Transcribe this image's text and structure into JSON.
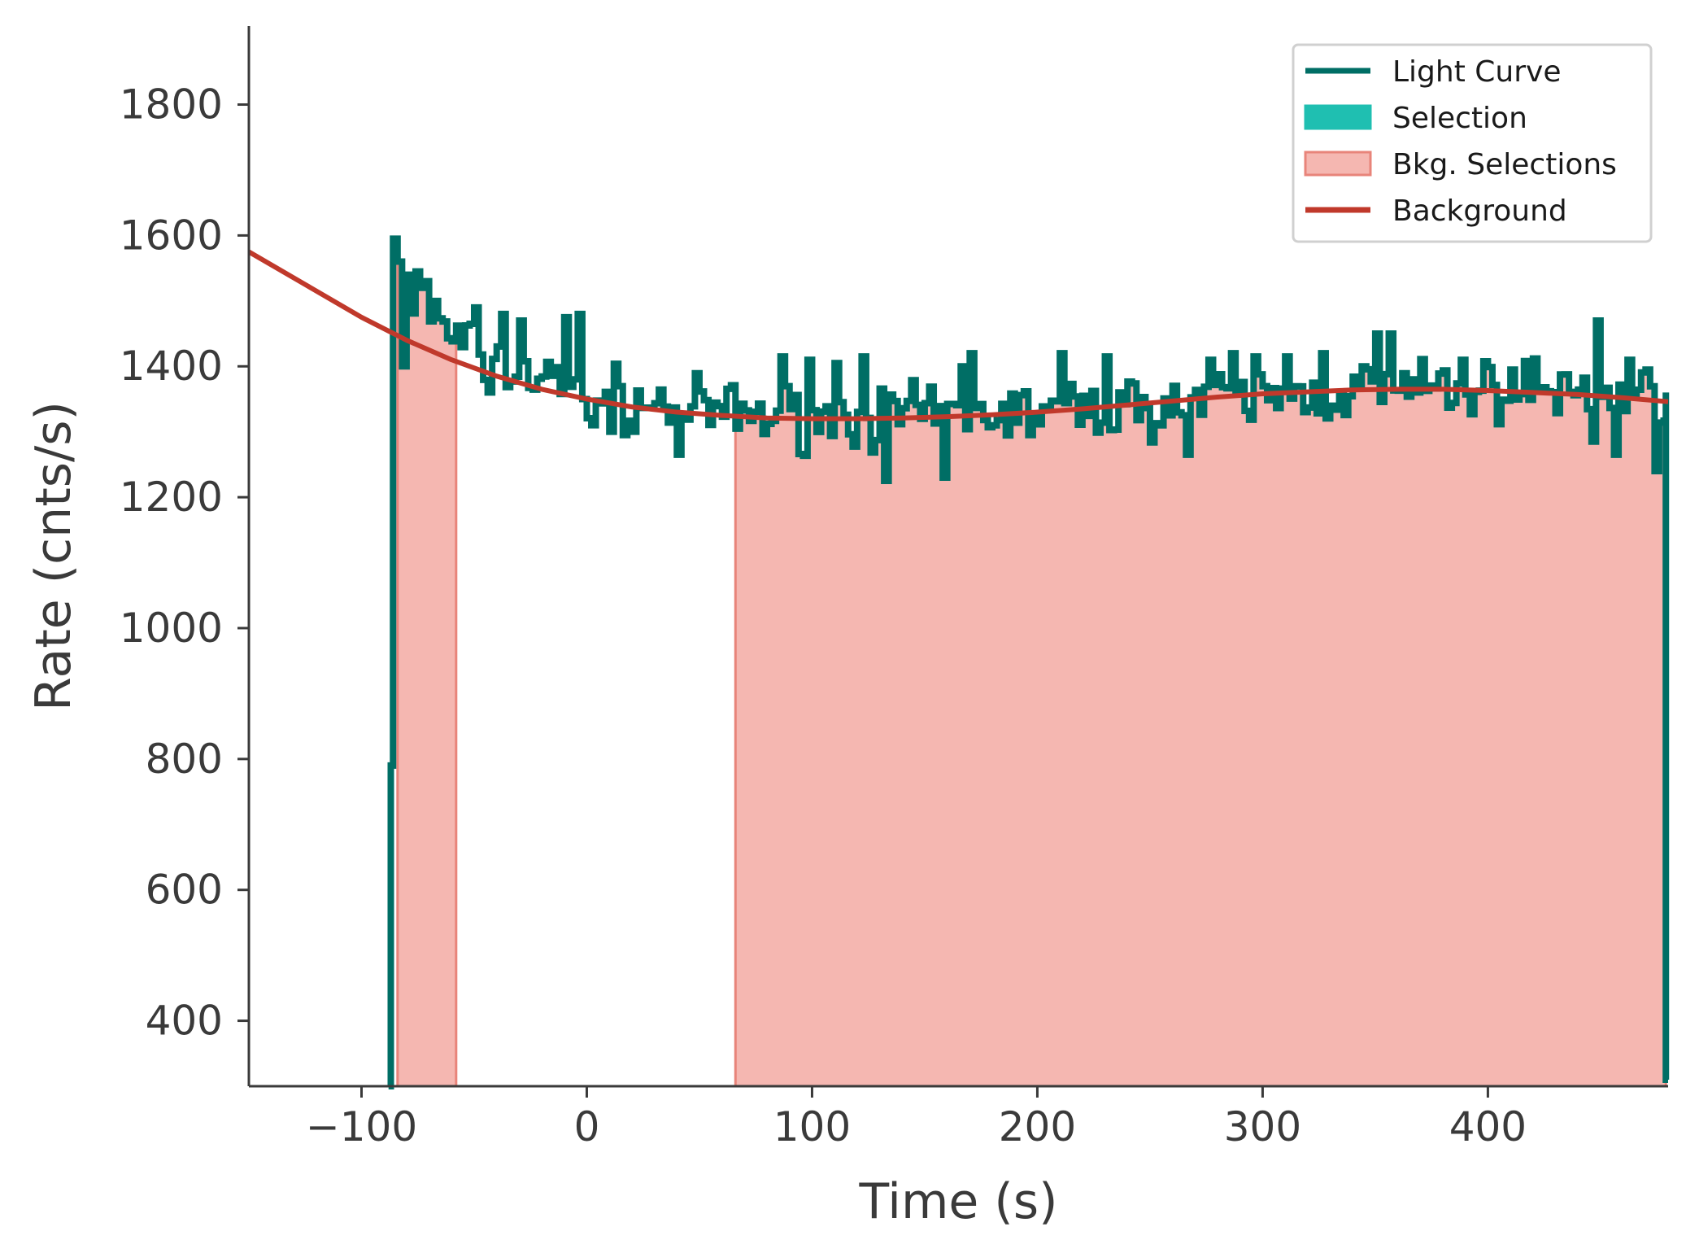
{
  "chart_data": {
    "type": "line",
    "xlabel": "Time (s)",
    "ylabel": "Rate (cnts/s)",
    "xlim": [
      -150,
      480
    ],
    "ylim": [
      300,
      1920
    ],
    "x_ticks": [
      -100,
      0,
      100,
      200,
      300,
      400
    ],
    "x_tick_labels": [
      "−100",
      "0",
      "100",
      "200",
      "300",
      "400"
    ],
    "y_ticks": [
      400,
      600,
      800,
      1000,
      1200,
      1400,
      1600,
      1800
    ],
    "y_tick_labels": [
      "400",
      "600",
      "800",
      "1000",
      "1200",
      "1400",
      "1600",
      "1800"
    ],
    "grid": false,
    "legend_position": "top-right",
    "colors": {
      "light_curve": "#006e65",
      "selection": "#1fbfb1",
      "bkg_selection_fill": "#f5b7b1",
      "bkg_selection_edge": "#e8847a",
      "background": "#c0392b",
      "axis": "#3a3a3a"
    },
    "legend": [
      {
        "label": "Light Curve",
        "kind": "line",
        "color": "#006e65"
      },
      {
        "label": "Selection",
        "kind": "patch",
        "color": "#1fbfb1"
      },
      {
        "label": "Bkg. Selections",
        "kind": "patch",
        "color": "#f5b7b1"
      },
      {
        "label": "Background",
        "kind": "line",
        "color": "#c0392b"
      }
    ],
    "bkg_selections": [
      [
        -84,
        -58
      ],
      [
        66,
        479
      ]
    ],
    "light_curve": {
      "name": "Light Curve",
      "data_start": -86,
      "data_end": 479,
      "pre_edge": [
        [
          -88,
          300
        ],
        [
          -87,
          300
        ],
        [
          -87,
          790
        ],
        [
          -86,
          790
        ]
      ],
      "step": 2,
      "trend": [
        [
          -86,
          1530
        ],
        [
          -80,
          1500
        ],
        [
          -70,
          1470
        ],
        [
          -60,
          1440
        ],
        [
          -50,
          1420
        ],
        [
          -40,
          1400
        ],
        [
          -30,
          1390
        ],
        [
          -20,
          1380
        ],
        [
          -10,
          1370
        ],
        [
          0,
          1360
        ],
        [
          20,
          1345
        ],
        [
          40,
          1335
        ],
        [
          60,
          1330
        ],
        [
          80,
          1325
        ],
        [
          100,
          1322
        ],
        [
          130,
          1322
        ],
        [
          160,
          1325
        ],
        [
          200,
          1330
        ],
        [
          250,
          1340
        ],
        [
          300,
          1352
        ],
        [
          350,
          1362
        ],
        [
          380,
          1365
        ],
        [
          420,
          1362
        ],
        [
          450,
          1360
        ],
        [
          479,
          1355
        ]
      ],
      "noise": 38,
      "spikes": [
        [
          -86,
          1595
        ],
        [
          -84,
          1560
        ],
        [
          -81,
          1540
        ],
        [
          -77,
          1545
        ],
        [
          -75,
          1520
        ],
        [
          -72,
          1530
        ],
        [
          -68,
          1500
        ],
        [
          -83,
          1400
        ],
        [
          -50,
          1490
        ],
        [
          -45,
          1360
        ],
        [
          -38,
          1480
        ],
        [
          -30,
          1470
        ],
        [
          -10,
          1475
        ],
        [
          -5,
          1480
        ],
        [
          -2,
          1350
        ],
        [
          1,
          1310
        ],
        [
          10,
          1300
        ],
        [
          20,
          1300
        ],
        [
          40,
          1265
        ],
        [
          86,
          1415
        ],
        [
          98,
          1410
        ],
        [
          110,
          1405
        ],
        [
          122,
          1415
        ],
        [
          132,
          1225
        ],
        [
          158,
          1230
        ],
        [
          165,
          1400
        ],
        [
          170,
          1420
        ],
        [
          210,
          1420
        ],
        [
          230,
          1415
        ],
        [
          265,
          1265
        ],
        [
          275,
          1410
        ],
        [
          285,
          1420
        ],
        [
          295,
          1415
        ],
        [
          310,
          1415
        ],
        [
          325,
          1420
        ],
        [
          343,
          1400
        ],
        [
          350,
          1450
        ],
        [
          356,
          1450
        ],
        [
          387,
          1410
        ],
        [
          410,
          1395
        ],
        [
          420,
          1412
        ],
        [
          445,
          1285
        ],
        [
          447,
          1470
        ],
        [
          455,
          1265
        ],
        [
          462,
          1410
        ],
        [
          470,
          1395
        ],
        [
          474,
          1240
        ]
      ],
      "post_edge": [
        [
          479,
          1360
        ],
        [
          479,
          310
        ],
        [
          480,
          310
        ]
      ]
    },
    "background": {
      "name": "Background",
      "points": [
        [
          -150,
          1575
        ],
        [
          -125,
          1525
        ],
        [
          -100,
          1475
        ],
        [
          -80,
          1440
        ],
        [
          -60,
          1410
        ],
        [
          -40,
          1385
        ],
        [
          -20,
          1365
        ],
        [
          0,
          1350
        ],
        [
          20,
          1338
        ],
        [
          40,
          1330
        ],
        [
          60,
          1325
        ],
        [
          80,
          1321
        ],
        [
          100,
          1320
        ],
        [
          120,
          1320
        ],
        [
          140,
          1321
        ],
        [
          160,
          1323
        ],
        [
          180,
          1326
        ],
        [
          200,
          1330
        ],
        [
          220,
          1335
        ],
        [
          240,
          1341
        ],
        [
          260,
          1347
        ],
        [
          280,
          1353
        ],
        [
          300,
          1358
        ],
        [
          320,
          1361
        ],
        [
          340,
          1364
        ],
        [
          360,
          1365
        ],
        [
          380,
          1365
        ],
        [
          400,
          1363
        ],
        [
          420,
          1360
        ],
        [
          440,
          1357
        ],
        [
          460,
          1352
        ],
        [
          480,
          1346
        ]
      ]
    }
  }
}
